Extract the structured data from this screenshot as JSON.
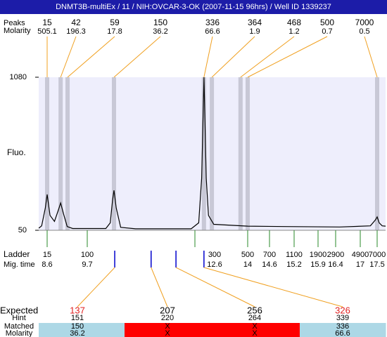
{
  "title": "DNMT3B-multiEx / 11 / NIH:OVCAR-3-OK (2007-11-15 96hrs) / Well ID 1339237",
  "chart_data": {
    "type": "electropherogram",
    "y_label": "Fluo.",
    "ylim": [
      50,
      1080
    ],
    "yticks": [
      50,
      1080
    ],
    "peaks": {
      "size_label": "Peaks",
      "molarity_label": "Molarity",
      "sizes": [
        15,
        42,
        59,
        150,
        336,
        364,
        468,
        500,
        7000
      ],
      "molarity": [
        505.1,
        196.3,
        17.8,
        36.2,
        66.6,
        1.9,
        1.2,
        0.7,
        0.5
      ],
      "times": [
        8.6,
        8.97,
        9.16,
        10.42,
        12.84,
        13.05,
        13.81,
        14.0,
        17.5
      ],
      "color": "#c8c8d6"
    },
    "ladder": {
      "label": "Ladder",
      "time_label": "Mig. time",
      "sizes": [
        15,
        100,
        300,
        500,
        700,
        1100,
        1900,
        2900,
        4900,
        7000
      ],
      "times": [
        8.6,
        9.7,
        12.6,
        14,
        14.6,
        15.2,
        15.9,
        16.4,
        17,
        17.5
      ],
      "color": "#2a8a2a"
    },
    "trace": {
      "color": "#000000",
      "x": [
        8.37,
        8.45,
        8.55,
        8.6,
        8.68,
        8.8,
        8.9,
        8.97,
        9.05,
        9.15,
        9.3,
        10.2,
        10.32,
        10.38,
        10.42,
        10.48,
        10.6,
        11.0,
        12.5,
        12.7,
        12.78,
        12.84,
        12.9,
        12.96,
        13.1,
        14.0,
        15.0,
        16.5,
        17.3,
        17.45,
        17.5,
        17.56,
        17.65,
        17.75
      ],
      "values": [
        64,
        80,
        200,
        291,
        150,
        110,
        180,
        234,
        160,
        75,
        62,
        62,
        100,
        250,
        319,
        200,
        70,
        60,
        60,
        100,
        400,
        1080,
        400,
        150,
        90,
        78,
        75,
        72,
        80,
        120,
        140,
        100,
        80,
        78
      ]
    },
    "expected": {
      "label": "Expected",
      "sizes": [
        137,
        207,
        256,
        326
      ],
      "size_colors": [
        "#e02020",
        "#000000",
        "#000000",
        "#e02020"
      ],
      "times": [
        10.44,
        11.42,
        12.09,
        12.84
      ],
      "marker_color": "#0000cc",
      "link_color": "#f0a020",
      "rows": [
        {
          "label": "Hint",
          "values": [
            151,
            220,
            264,
            339
          ]
        },
        {
          "label": "Matched",
          "values": [
            150,
            "X",
            "X",
            336
          ]
        },
        {
          "label": "Molarity",
          "values": [
            36.2,
            "X",
            "X",
            66.6
          ]
        }
      ],
      "cell_colors": [
        "#add8e6",
        "#ff0000",
        "#ff0000",
        "#add8e6"
      ]
    }
  }
}
